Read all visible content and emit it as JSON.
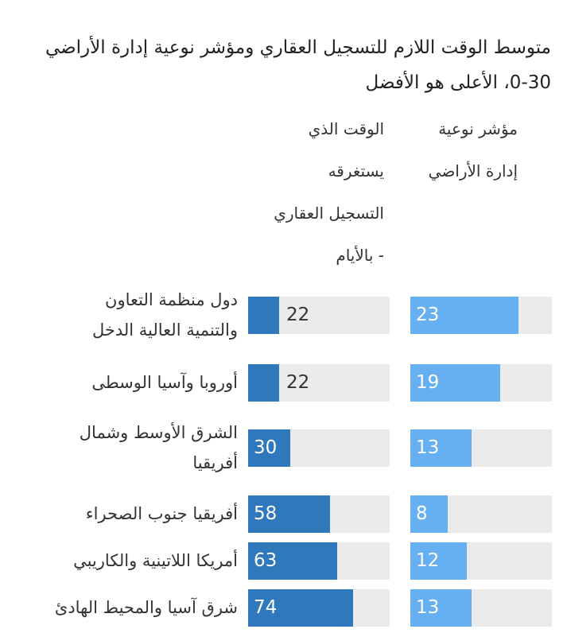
{
  "title": {
    "line1": "متوسط الوقت اللازم للتسجيل العقاري ومؤشر نوعية إدارة الأراضي",
    "line2": "0-30، الأعلى هو الأفضل"
  },
  "columns": {
    "time": {
      "lines": [
        "الوقت الذي",
        "يستغرقه",
        "التسجيل العقاري",
        "- بالأيام"
      ]
    },
    "index": {
      "lines": [
        "مؤشر نوعية",
        "إدارة الأراضي"
      ]
    }
  },
  "colors": {
    "time_bar": "#2f78bb",
    "index_bar": "#66b0f2",
    "track": "#ebebeb"
  },
  "chart_data": {
    "type": "bar",
    "title": "متوسط الوقت اللازم للتسجيل العقاري ومؤشر نوعية إدارة الأراضي 0-30، الأعلى هو الأفضل",
    "categories": [
      "دول منظمة التعاون والتنمية العالية الدخل",
      "أوروبا وآسيا الوسطى",
      "الشرق الأوسط وشمال أفريقيا",
      "أفريقيا جنوب الصحراء",
      "أمريكا اللاتينية والكاريبي",
      "شرق آسيا والمحيط الهادئ"
    ],
    "category_lines": [
      [
        "دول منظمة التعاون",
        "والتنمية العالية الدخل"
      ],
      [
        "أوروبا وآسيا الوسطى"
      ],
      [
        "الشرق الأوسط وشمال",
        "أفريقيا"
      ],
      [
        "أفريقيا جنوب الصحراء"
      ],
      [
        "أمريكا اللاتينية والكاريبي"
      ],
      [
        "شرق آسيا والمحيط الهادئ"
      ]
    ],
    "series": [
      {
        "name": "الوقت الذي يستغرقه التسجيل العقاري - بالأيام",
        "values": [
          22,
          22,
          30,
          58,
          63,
          74
        ],
        "max": 100
      },
      {
        "name": "مؤشر نوعية إدارة الأراضي",
        "values": [
          23,
          19,
          13,
          8,
          12,
          13
        ],
        "max": 30
      }
    ],
    "grid": false,
    "legend": "none"
  }
}
